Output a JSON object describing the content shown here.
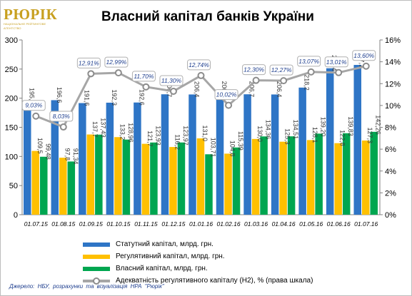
{
  "header": {
    "logo_text": "РЮРІК",
    "logo_subtext": "НАЦІОНАЛЬНЕ РЕЙТИНГОВЕ АГЕНТСТВО"
  },
  "footer": {
    "source": "Джерело: НБУ, розрахунки та візуалізація НРА \"Рюрік\""
  },
  "chart_data": {
    "type": "bar",
    "title": "Власний капітал банків України",
    "categories": [
      "01.07.15",
      "01.08.15",
      "01.09.15",
      "01.10.15",
      "01.11.15",
      "01.12.15",
      "01.01.16",
      "01.02.16",
      "01.03.16",
      "01.04.16",
      "01.05.16",
      "01.06.16",
      "01.07.16"
    ],
    "ylim": [
      0,
      300
    ],
    "y_ticks": [
      "0",
      "50",
      "100",
      "150",
      "200",
      "250",
      "300"
    ],
    "y2lim": [
      0,
      16
    ],
    "y2_ticks": [
      "0%",
      "2%",
      "4%",
      "6%",
      "8%",
      "10%",
      "12%",
      "14%",
      "16%"
    ],
    "grid": false,
    "legend_position": "bottom",
    "series": [
      {
        "name": "Статутний капітал, млрд. грн.",
        "kind": "bar",
        "axis": "left",
        "color": "#2e75c6",
        "values": [
          195.3,
          196.6,
          191.6,
          192.3,
          192.6,
          206.7,
          206.4,
          206.8,
          206.7,
          206.4,
          218.2,
          251.4,
          257.1
        ],
        "labels": [
          "195,3",
          "196,6",
          "191,6",
          "192,3",
          "192,6",
          "206,7",
          "206,4",
          "206,8",
          "206,7",
          "206,4",
          "218,2",
          "251,4",
          "257,1"
        ]
      },
      {
        "name": "Регулятивний капітал, млрд. грн.",
        "kind": "bar",
        "axis": "left",
        "color": "#ffc000",
        "values": [
          109.5,
          97.8,
          137.7,
          133.2,
          121.7,
          116.2,
          131.0,
          104.8,
          130.0,
          125.3,
          128.1,
          122.8,
          127.3
        ],
        "labels": [
          "109,5",
          "97,8",
          "137,7",
          "133,2",
          "121,7",
          "116,2",
          "131,0",
          "104,8",
          "130,0",
          "125,3",
          "128,1",
          "122,8",
          "127,3"
        ]
      },
      {
        "name": "Власний капітал, млрд. грн.",
        "kind": "bar",
        "axis": "left",
        "color": "#00a650",
        "values": [
          99.48,
          91.34,
          137.43,
          128.96,
          123.93,
          123.97,
          103.71,
          115.39,
          134.36,
          134.51,
          139.2,
          139.83,
          142.26
        ],
        "labels": [
          "99,48",
          "91,34",
          "137,43",
          "128,96",
          "123,93",
          "123,97",
          "103,71",
          "115,39",
          "134,36",
          "134,51",
          "139,20",
          "139,83",
          "142,26"
        ]
      },
      {
        "name": "Адекватність регулятивного капіталу (Н2), % (права шкала)",
        "kind": "line",
        "axis": "right",
        "color": "#a6a6a6",
        "values": [
          9.03,
          8.03,
          12.91,
          12.99,
          11.7,
          11.3,
          12.74,
          10.02,
          12.3,
          12.27,
          13.07,
          13.01,
          13.6
        ],
        "labels": [
          "9,03%",
          "8,03%",
          "12,91%",
          "12,99%",
          "11,70%",
          "11,30%",
          "12,74%",
          "10,02%",
          "12,30%",
          "12,27%",
          "13,07%",
          "13,01%",
          "13,60%"
        ]
      }
    ]
  }
}
